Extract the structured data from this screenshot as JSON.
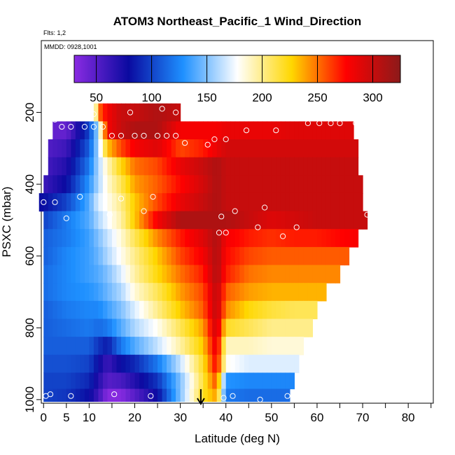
{
  "chart_data": {
    "type": "heatmap",
    "title": "ATOM3 Northeast_Pacific_1 Wind_Direction",
    "flights_label": "Flts: 1,2",
    "dates_label": "MMDD: 0928,1001",
    "xlabel": "Latitude (deg N)",
    "ylabel": "PSXC (mbar)",
    "xlim": [
      -0.5,
      85.5
    ],
    "ylim": [
      1010,
      0
    ],
    "y_reversed": true,
    "grid": false,
    "x_ticks": [
      0,
      5,
      10,
      20,
      30,
      40,
      50,
      60,
      70,
      80
    ],
    "x_minor_ticks": [
      0,
      5,
      10,
      15,
      20,
      25,
      30,
      35,
      40,
      45,
      50,
      55,
      60,
      65,
      70,
      75,
      80,
      85
    ],
    "y_ticks": [
      200,
      400,
      600,
      800,
      1000
    ],
    "colorbar": {
      "placement": "top",
      "range": [
        30,
        325
      ],
      "ticks": [
        50,
        100,
        150,
        200,
        250,
        300
      ],
      "colors": [
        "#8a2be2",
        "#0a0aa0",
        "#1e90ff",
        "#ffffff",
        "#ffd700",
        "#ff0000",
        "#8b1a1a"
      ]
    },
    "arrow_latitude": 34.5,
    "z_description": "wind direction (deg)",
    "pressure_levels": [
      200,
      250,
      300,
      350,
      400,
      450,
      500,
      550,
      600,
      650,
      700,
      750,
      800,
      850,
      900,
      950,
      990
    ],
    "latitude_extent": [
      [
        11,
        30
      ],
      [
        2,
        68
      ],
      [
        1,
        69
      ],
      [
        1,
        69
      ],
      [
        0,
        70
      ],
      [
        -1,
        70
      ],
      [
        0,
        71
      ],
      [
        0,
        69
      ],
      [
        0,
        67
      ],
      [
        0,
        65
      ],
      [
        0,
        62
      ],
      [
        0,
        60
      ],
      [
        0,
        59
      ],
      [
        0,
        57
      ],
      [
        0,
        56
      ],
      [
        0,
        55
      ],
      [
        0,
        54
      ]
    ],
    "anchors": {
      "lat": [
        0,
        5,
        10,
        12,
        14,
        17,
        20,
        25,
        30,
        35,
        38,
        40,
        45,
        50,
        55,
        60,
        65,
        70
      ],
      "dir": [
        [
          45,
          45,
          45,
          250,
          280,
          300,
          300,
          310,
          300,
          290,
          290,
          290,
          290,
          290,
          290,
          290,
          290,
          290
        ],
        [
          45,
          45,
          100,
          160,
          280,
          300,
          310,
          310,
          280,
          280,
          280,
          285,
          285,
          285,
          290,
          290,
          290,
          290
        ],
        [
          50,
          60,
          110,
          160,
          230,
          260,
          280,
          290,
          260,
          270,
          285,
          295,
          295,
          295,
          295,
          295,
          295,
          295
        ],
        [
          55,
          70,
          120,
          160,
          190,
          225,
          250,
          260,
          285,
          300,
          310,
          300,
          300,
          300,
          300,
          300,
          300,
          300
        ],
        [
          60,
          80,
          130,
          160,
          185,
          210,
          240,
          255,
          275,
          295,
          310,
          300,
          300,
          300,
          300,
          300,
          300,
          300
        ],
        [
          80,
          100,
          140,
          170,
          180,
          200,
          230,
          260,
          285,
          300,
          310,
          300,
          300,
          300,
          300,
          300,
          300,
          300
        ],
        [
          100,
          120,
          140,
          160,
          175,
          195,
          230,
          280,
          310,
          310,
          310,
          310,
          300,
          290,
          295,
          300,
          300,
          300
        ],
        [
          110,
          120,
          135,
          150,
          165,
          185,
          210,
          245,
          270,
          290,
          310,
          280,
          270,
          265,
          270,
          270,
          275,
          280
        ],
        [
          110,
          125,
          135,
          145,
          160,
          180,
          200,
          230,
          260,
          280,
          310,
          275,
          260,
          255,
          255,
          255,
          255,
          255
        ],
        [
          115,
          125,
          135,
          140,
          150,
          170,
          195,
          225,
          250,
          270,
          310,
          270,
          250,
          245,
          245,
          245,
          245,
          245
        ],
        [
          115,
          125,
          130,
          135,
          145,
          160,
          185,
          210,
          240,
          260,
          305,
          255,
          240,
          235,
          235,
          235,
          235,
          235
        ],
        [
          110,
          120,
          125,
          125,
          135,
          150,
          170,
          200,
          230,
          255,
          305,
          245,
          225,
          215,
          210,
          210,
          210,
          210
        ],
        [
          110,
          115,
          120,
          115,
          120,
          140,
          160,
          180,
          210,
          240,
          300,
          220,
          210,
          200,
          200,
          200,
          200,
          200
        ],
        [
          110,
          110,
          110,
          95,
          85,
          120,
          140,
          165,
          195,
          230,
          290,
          190,
          190,
          185,
          185,
          185,
          185,
          185
        ],
        [
          105,
          105,
          100,
          80,
          60,
          80,
          90,
          120,
          165,
          220,
          280,
          180,
          170,
          170,
          170,
          170,
          170,
          170
        ],
        [
          100,
          100,
          90,
          70,
          50,
          55,
          70,
          95,
          150,
          215,
          260,
          130,
          125,
          125,
          125,
          125,
          125,
          125
        ],
        [
          100,
          95,
          80,
          60,
          32,
          32,
          50,
          80,
          150,
          220,
          240,
          120,
          115,
          115,
          115,
          115,
          115,
          115
        ]
      ]
    },
    "observations": [
      [
        11,
        205
      ],
      [
        19,
        200
      ],
      [
        26,
        190
      ],
      [
        29,
        200
      ],
      [
        2.5,
        220
      ],
      [
        4,
        240
      ],
      [
        6,
        240
      ],
      [
        9,
        240
      ],
      [
        11,
        240
      ],
      [
        13,
        240
      ],
      [
        15,
        265
      ],
      [
        17,
        265
      ],
      [
        20,
        265
      ],
      [
        22,
        265
      ],
      [
        25,
        265
      ],
      [
        27,
        265
      ],
      [
        29,
        265
      ],
      [
        31,
        285
      ],
      [
        36,
        290
      ],
      [
        37.5,
        275
      ],
      [
        40,
        275
      ],
      [
        44.5,
        250
      ],
      [
        51,
        250
      ],
      [
        58,
        230
      ],
      [
        60.5,
        230
      ],
      [
        63,
        230
      ],
      [
        65,
        230
      ],
      [
        68.5,
        230
      ],
      [
        8,
        435
      ],
      [
        17,
        440
      ],
      [
        24,
        435
      ],
      [
        0,
        450
      ],
      [
        2.5,
        450
      ],
      [
        14.5,
        485
      ],
      [
        22,
        475
      ],
      [
        5,
        495
      ],
      [
        42,
        475
      ],
      [
        39,
        490
      ],
      [
        48.5,
        465
      ],
      [
        47,
        520
      ],
      [
        38.5,
        535
      ],
      [
        40,
        535
      ],
      [
        52.5,
        545
      ],
      [
        55.5,
        520
      ],
      [
        71,
        485
      ],
      [
        1.5,
        985
      ],
      [
        6,
        990
      ],
      [
        0.5,
        990
      ],
      [
        15.5,
        985
      ],
      [
        23.5,
        990
      ],
      [
        39.5,
        995
      ],
      [
        41.5,
        990
      ],
      [
        47.5,
        1000
      ],
      [
        53.5,
        990
      ]
    ]
  }
}
